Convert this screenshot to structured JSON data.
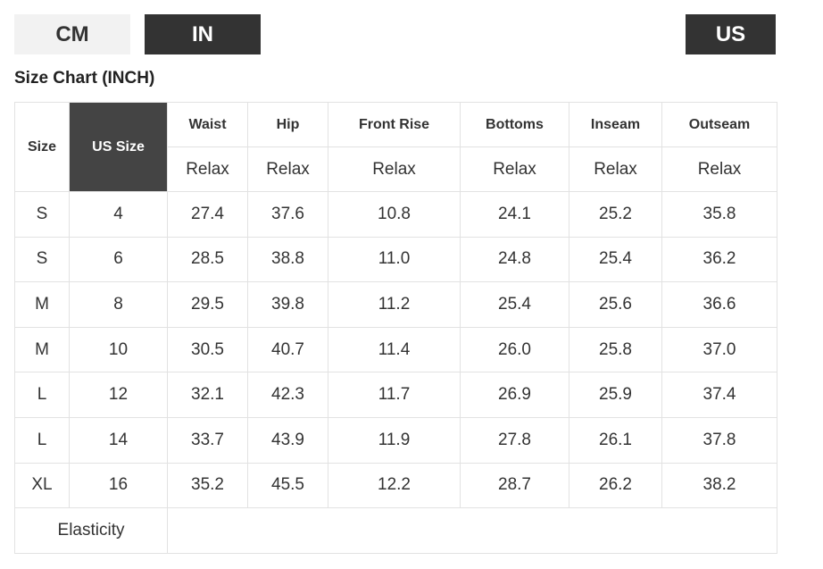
{
  "buttons": {
    "units": [
      "CM",
      "IN"
    ],
    "region": "US"
  },
  "title": "Size Chart (INCH)",
  "table": {
    "header": [
      "Size",
      "US Size",
      "Waist",
      "Hip",
      "Front Rise",
      "Bottoms",
      "Inseam",
      "Outseam"
    ],
    "subheader": [
      "Relax",
      "Relax",
      "Relax",
      "Relax",
      "Relax",
      "Relax"
    ],
    "rows": [
      [
        "S",
        "4",
        "27.4",
        "37.6",
        "10.8",
        "24.1",
        "25.2",
        "35.8"
      ],
      [
        "S",
        "6",
        "28.5",
        "38.8",
        "11.0",
        "24.8",
        "25.4",
        "36.2"
      ],
      [
        "M",
        "8",
        "29.5",
        "39.8",
        "11.2",
        "25.4",
        "25.6",
        "36.6"
      ],
      [
        "M",
        "10",
        "30.5",
        "40.7",
        "11.4",
        "26.0",
        "25.8",
        "37.0"
      ],
      [
        "L",
        "12",
        "32.1",
        "42.3",
        "11.7",
        "26.9",
        "25.9",
        "37.4"
      ],
      [
        "L",
        "14",
        "33.7",
        "43.9",
        "11.9",
        "27.8",
        "26.1",
        "37.8"
      ],
      [
        "XL",
        "16",
        "35.2",
        "45.5",
        "12.2",
        "28.7",
        "26.2",
        "38.2"
      ]
    ],
    "footer": "Elasticity"
  }
}
